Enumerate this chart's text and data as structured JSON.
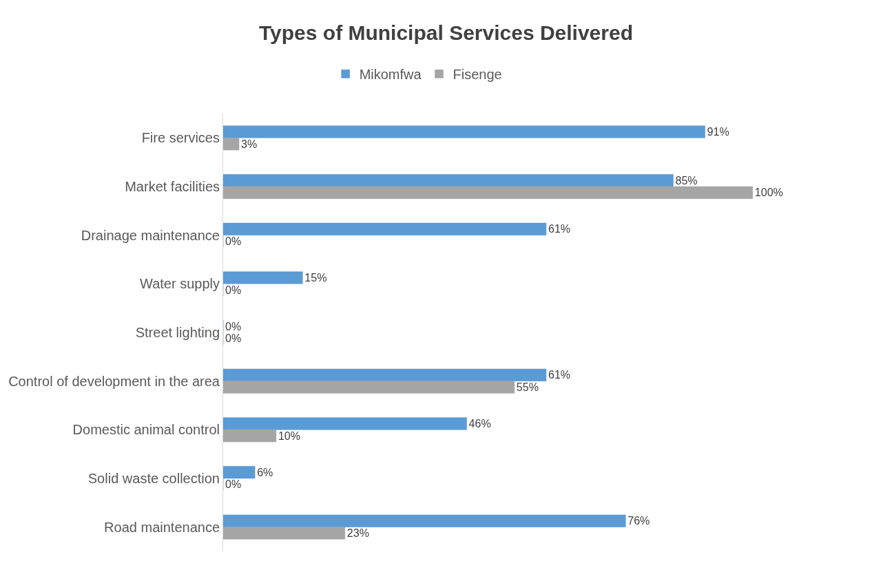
{
  "chart_data": {
    "type": "bar",
    "orientation": "horizontal",
    "title": "Types of Municipal Services Delivered",
    "categories": [
      "Fire services",
      "Market facilities",
      "Drainage maintenance",
      "Water supply",
      "Street lighting",
      "Control of development in the area",
      "Domestic animal control",
      "Solid waste collection",
      "Road maintenance"
    ],
    "series": [
      {
        "name": "Mikomfwa",
        "color": "#5b9bd5",
        "values": [
          91,
          85,
          61,
          15,
          0,
          61,
          46,
          6,
          76
        ],
        "value_labels": [
          "91%",
          "85%",
          "61%",
          "15%",
          "0%",
          "61%",
          "46%",
          "6%",
          "76%"
        ]
      },
      {
        "name": "Fisenge",
        "color": "#a5a5a5",
        "values": [
          3,
          100,
          0,
          0,
          0,
          55,
          10,
          0,
          23
        ],
        "value_labels": [
          "3%",
          "100%",
          "0%",
          "0%",
          "0%",
          "55%",
          "10%",
          "0%",
          "23%"
        ]
      }
    ],
    "legend": "top",
    "tick_labels": "y"
  }
}
